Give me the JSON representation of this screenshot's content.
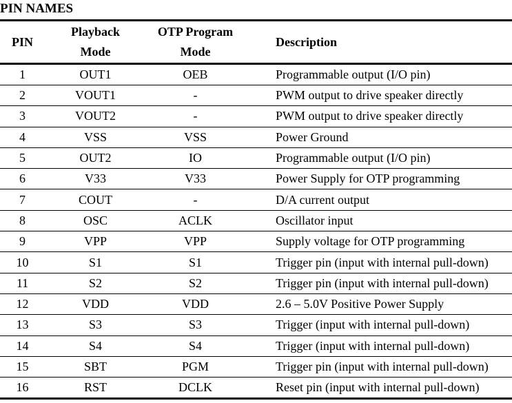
{
  "section_title": "PIN NAMES",
  "table": {
    "headers": {
      "pin": "PIN",
      "playback_line1": "Playback",
      "playback_line2": "Mode",
      "otp_line1": "OTP Program",
      "otp_line2": "Mode",
      "description": "Description"
    },
    "rows": [
      {
        "pin": "1",
        "playback": "OUT1",
        "otp": "OEB",
        "description": "Programmable output (I/O pin)"
      },
      {
        "pin": "2",
        "playback": "VOUT1",
        "otp": "-",
        "description": "PWM output to drive speaker directly"
      },
      {
        "pin": "3",
        "playback": "VOUT2",
        "otp": "-",
        "description": "PWM output to drive speaker directly"
      },
      {
        "pin": "4",
        "playback": "VSS",
        "otp": "VSS",
        "description": "Power Ground"
      },
      {
        "pin": "5",
        "playback": "OUT2",
        "otp": "IO",
        "description": "Programmable output (I/O pin)"
      },
      {
        "pin": "6",
        "playback": "V33",
        "otp": "V33",
        "description": "Power Supply for OTP programming"
      },
      {
        "pin": "7",
        "playback": "COUT",
        "otp": "-",
        "description": "D/A current output"
      },
      {
        "pin": "8",
        "playback": "OSC",
        "otp": "ACLK",
        "description": "Oscillator input"
      },
      {
        "pin": "9",
        "playback": "VPP",
        "otp": "VPP",
        "description": "Supply voltage for OTP programming"
      },
      {
        "pin": "10",
        "playback": "S1",
        "otp": "S1",
        "description": "Trigger pin (input with internal pull-down)"
      },
      {
        "pin": "11",
        "playback": "S2",
        "otp": "S2",
        "description": "Trigger pin (input with internal pull-down)"
      },
      {
        "pin": "12",
        "playback": "VDD",
        "otp": "VDD",
        "description": "2.6 – 5.0V Positive Power Supply"
      },
      {
        "pin": "13",
        "playback": "S3",
        "otp": "S3",
        "description": "Trigger (input with internal pull-down)"
      },
      {
        "pin": "14",
        "playback": "S4",
        "otp": "S4",
        "description": "Trigger (input with internal pull-down)"
      },
      {
        "pin": "15",
        "playback": "SBT",
        "otp": "PGM",
        "description": "Trigger pin (input with internal pull-down)"
      },
      {
        "pin": "16",
        "playback": "RST",
        "otp": "DCLK",
        "description": "Reset pin (input with internal pull-down)"
      }
    ]
  }
}
